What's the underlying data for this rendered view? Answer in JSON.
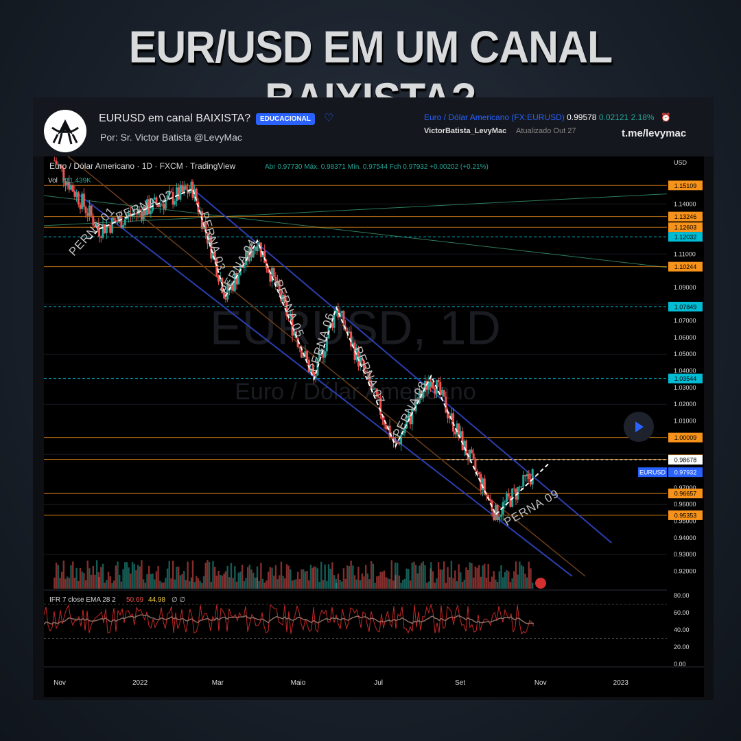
{
  "headline": "EUR/USD EM UM CANAL BAIXISTA?",
  "post": {
    "title": "EURUSD em canal BAIXISTA?",
    "badge": "EDUCACIONAL",
    "author": "Por: Sr. Victor Batista  @LevyMac",
    "symbol_full": "Euro / Dólar Americano",
    "symbol_code": "(FX:EURUSD)",
    "price": "0.99578",
    "change": "0.02121",
    "change_pct": "2.18%",
    "user": "VictorBatista_LevyMac",
    "updated": "Atualizado Out 27",
    "telegram": "t.me/levymac"
  },
  "chart_header": {
    "name": "Euro / Dólar Americano · 1D · FXCM · TradingView",
    "ohlc": "Abr 0.97730  Máx. 0.98371  Mín. 0.97544  Fch 0.97932  +0.00202 (+0.21%)",
    "vol_label": "Vol",
    "vol_value": "231.439K",
    "currency": "USD",
    "watermark_1": "EURUSD, 1D",
    "watermark_2": "Euro / Dólar Americano",
    "rsi_header": "IFR 7 close EMA 28 2",
    "rsi_v1": "50.69",
    "rsi_v2": "44.98",
    "rsi_v3": "∅ ∅",
    "symbol_tag": "EURUSD"
  },
  "chart_data": {
    "type": "line",
    "title": "EURUSD em canal BAIXISTA?",
    "x_labels": [
      "Nov",
      "2022",
      "Mar",
      "Maio",
      "Jul",
      "Set",
      "Nov",
      "2023"
    ],
    "y_ticks": [
      "1.14000",
      "1.11000",
      "1.09000",
      "1.07000",
      "1.06000",
      "1.05000",
      "1.04000",
      "1.03000",
      "1.02000",
      "1.01000",
      "0.97000",
      "0.96000",
      "0.95000",
      "0.94000",
      "0.93000",
      "0.92000"
    ],
    "y_range": [
      0.912,
      1.166
    ],
    "price_levels": [
      {
        "value": 1.15109,
        "label": "1.15109",
        "color": "#f7931a",
        "style": "solid"
      },
      {
        "value": 1.13246,
        "label": "1.13246",
        "color": "#f7931a",
        "style": "solid"
      },
      {
        "value": 1.12603,
        "label": "1.12603",
        "color": "#f7931a",
        "style": "solid"
      },
      {
        "value": 1.12032,
        "label": "1.12032",
        "color": "#00bcd4",
        "style": "dashed"
      },
      {
        "value": 1.10244,
        "label": "1.10244",
        "color": "#f7931a",
        "style": "solid"
      },
      {
        "value": 1.07849,
        "label": "1.07849",
        "color": "#00bcd4",
        "style": "dashed"
      },
      {
        "value": 1.03544,
        "label": "1.03544",
        "color": "#00bcd4",
        "style": "dashed"
      },
      {
        "value": 1.00009,
        "label": "1.00009",
        "color": "#f7931a",
        "style": "solid"
      },
      {
        "value": 0.987,
        "label": "0.98700",
        "color": "#f7931a",
        "style": "solid"
      },
      {
        "value": 0.98678,
        "label": "0.98678",
        "color": "#ffffff",
        "style": "dashed"
      },
      {
        "value": 0.96657,
        "label": "0.96657",
        "color": "#f7931a",
        "style": "solid"
      },
      {
        "value": 0.95353,
        "label": "0.95353",
        "color": "#f7931a",
        "style": "solid"
      }
    ],
    "last_price": {
      "value": 0.97932,
      "label": "0.97932"
    },
    "legs": [
      {
        "name": "PERNA 01",
        "date": "2021-12-01",
        "price": 1.125
      },
      {
        "name": "PERNA 02",
        "date": "2022-02-10",
        "price": 1.149
      },
      {
        "name": "PERNA 03",
        "date": "2022-03-07",
        "price": 1.085
      },
      {
        "name": "PERNA 04",
        "date": "2022-03-31",
        "price": 1.118
      },
      {
        "name": "PERNA 05",
        "date": "2022-05-13",
        "price": 1.035
      },
      {
        "name": "PERNA 06",
        "date": "2022-05-30",
        "price": 1.078
      },
      {
        "name": "PERNA 07",
        "date": "2022-07-14",
        "price": 0.995
      },
      {
        "name": "PERNA 08",
        "date": "2022-08-10",
        "price": 1.037
      },
      {
        "name": "PERNA 09",
        "date": "2022-09-28",
        "price": 0.954
      }
    ],
    "projection": [
      {
        "date": "2022-09-28",
        "price": 0.954
      },
      {
        "date": "2022-11-08",
        "price": 0.985
      }
    ],
    "channel_upper": [
      {
        "date": "2022-02-10",
        "price": 1.149
      },
      {
        "date": "2022-12-25",
        "price": 0.937
      }
    ],
    "channel_lower": [
      {
        "date": "2021-11-05",
        "price": 1.152
      },
      {
        "date": "2022-11-25",
        "price": 0.917
      }
    ],
    "channel_mid": [
      {
        "date": "2021-11-05",
        "price": 1.17
      },
      {
        "date": "2022-12-05",
        "price": 0.917
      }
    ],
    "rsi_scale": [
      "80.00",
      "60.00",
      "40.00",
      "20.00",
      "0.00"
    ]
  }
}
